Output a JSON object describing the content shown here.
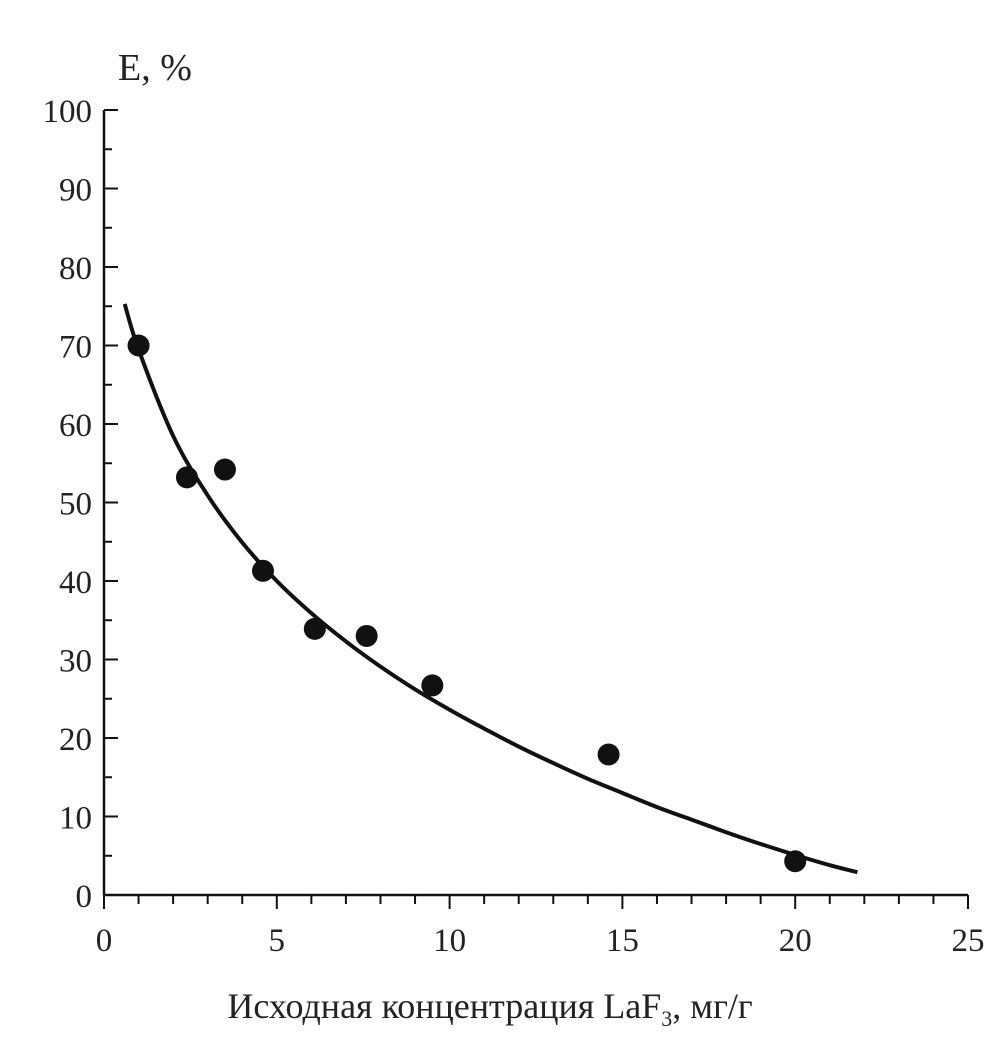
{
  "chart_data": {
    "type": "scatter",
    "ylabel": "E, %",
    "xlabel": {
      "prefix": "Исходная концентрация LaF",
      "subscript": "3",
      "suffix": ", мг/г"
    },
    "xlim": [
      0,
      25
    ],
    "ylim": [
      0,
      100
    ],
    "x_ticks": [
      0,
      5,
      10,
      15,
      20,
      25
    ],
    "y_ticks": [
      0,
      10,
      20,
      30,
      40,
      50,
      60,
      70,
      80,
      90,
      100
    ],
    "x_minor_step": 1,
    "y_minor_step": 5,
    "grid": false,
    "series": [
      {
        "kind": "points",
        "x": [
          1.0,
          2.4,
          3.5,
          4.6,
          6.1,
          7.6,
          9.5,
          14.6,
          20.0
        ],
        "y": [
          70,
          53.2,
          54.2,
          41.3,
          33.9,
          33.0,
          26.7,
          17.9,
          4.3
        ]
      },
      {
        "kind": "trend",
        "x": [
          0.6,
          1,
          2,
          3,
          4,
          5,
          6,
          7,
          8,
          9,
          10,
          11,
          12,
          13,
          14,
          15,
          16,
          17,
          18,
          19,
          20,
          21,
          21.8
        ],
        "y": [
          75.3,
          69.5,
          58.5,
          50.9,
          44.9,
          40.0,
          35.9,
          32.3,
          29.1,
          26.2,
          23.6,
          21.2,
          18.9,
          16.8,
          14.8,
          13.0,
          11.2,
          9.6,
          8.0,
          6.5,
          5.1,
          3.8,
          2.9
        ]
      }
    ]
  }
}
